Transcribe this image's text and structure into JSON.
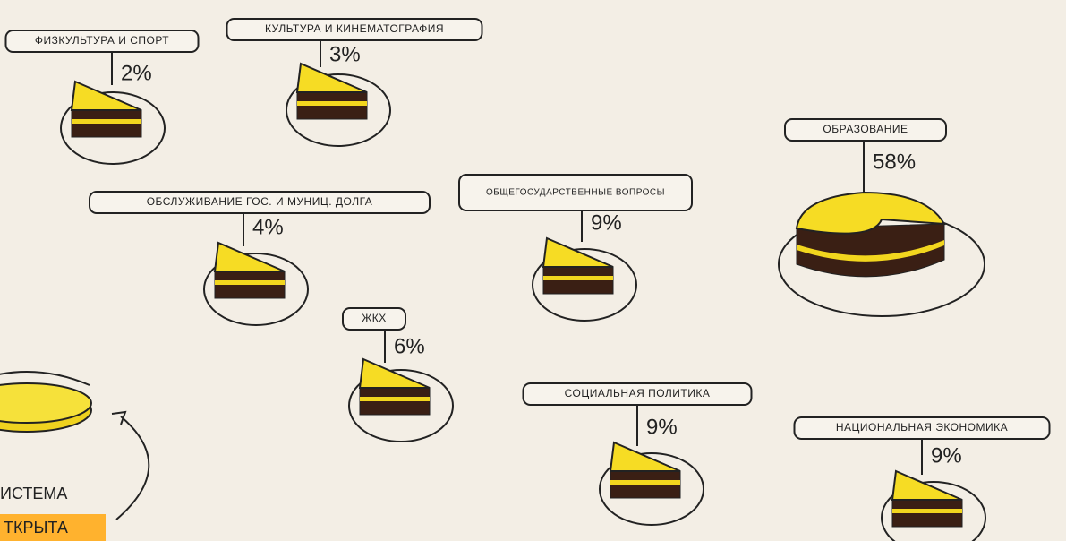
{
  "items": [
    {
      "label": "ФИЗКУЛЬТУРА И СПОРТ",
      "value": "2%"
    },
    {
      "label": "КУЛЬТУРА И КИНЕМАТОГРАФИЯ",
      "value": "3%"
    },
    {
      "label": "ОБСЛУЖИВАНИЕ ГОС. И МУНИЦ. ДОЛГА",
      "value": "4%"
    },
    {
      "label": "ОБЩЕГОСУДАРСТВЕННЫЕ ВОПРОСЫ",
      "value": "9%"
    },
    {
      "label": "ЖКХ",
      "value": "6%"
    },
    {
      "label": "СОЦИАЛЬНАЯ ПОЛИТИКА",
      "value": "9%"
    },
    {
      "label": "НАЦИОНАЛЬНАЯ ЭКОНОМИКА",
      "value": "9%"
    },
    {
      "label": "ОБРАЗОВАНИЕ",
      "value": "58%"
    }
  ],
  "footer": {
    "line1": "ИСТЕМА",
    "line2": "ТКРЫТА"
  }
}
